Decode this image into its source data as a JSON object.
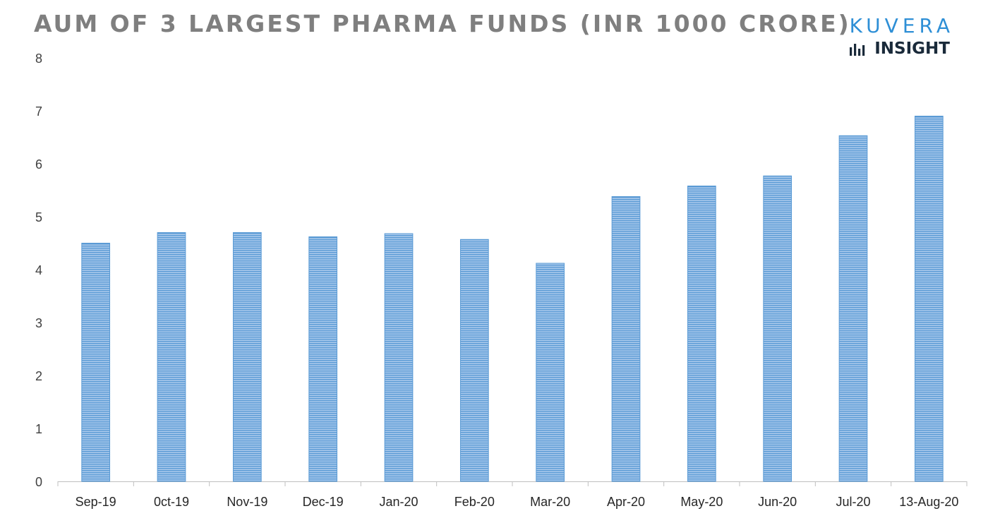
{
  "header": {
    "title": "AUM OF 3 LARGEST PHARMA FUNDS (INR 1000 CRORE)"
  },
  "brand": {
    "name": "KUVERA",
    "sub": "INSIGHT",
    "icon": "bar-chart-icon",
    "color": "#2e8fd6"
  },
  "chart_data": {
    "type": "bar",
    "title": "AUM OF 3 LARGEST PHARMA FUNDS (INR 1000 CRORE)",
    "categories": [
      "Sep-19",
      "0ct-19",
      "Nov-19",
      "Dec-19",
      "Jan-20",
      "Feb-20",
      "Mar-20",
      "Apr-20",
      "May-20",
      "Jun-20",
      "Jul-20",
      "13-Aug-20"
    ],
    "values": [
      4.5,
      4.7,
      4.7,
      4.62,
      4.68,
      4.57,
      4.12,
      5.38,
      5.58,
      5.77,
      6.53,
      6.9
    ],
    "xlabel": "",
    "ylabel": "",
    "ylim": [
      0,
      8
    ],
    "yticks": [
      0,
      1,
      2,
      3,
      4,
      5,
      6,
      7,
      8
    ],
    "grid": false,
    "legend": "none",
    "bar_color": "#5b9bd5",
    "bar_fill": "horizontal-hatch"
  }
}
